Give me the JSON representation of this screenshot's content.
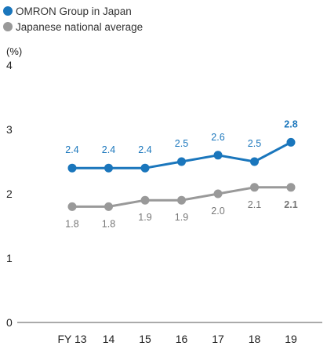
{
  "legend": [
    {
      "name": "OMRON Group in Japan",
      "color": "#1a76bc"
    },
    {
      "name": "Japanese national average",
      "color": "#999999"
    }
  ],
  "chart_data": {
    "type": "line",
    "title": "",
    "xlabel": "",
    "ylabel": "(%)",
    "categories": [
      "FY 13",
      "14",
      "15",
      "16",
      "17",
      "18",
      "19"
    ],
    "ylim": [
      0,
      4
    ],
    "yticks": [
      0,
      1,
      2,
      3,
      4
    ],
    "grid": false,
    "legend_position": "top-left",
    "series": [
      {
        "name": "OMRON Group in Japan",
        "color": "#1a76bc",
        "values": [
          2.4,
          2.4,
          2.4,
          2.5,
          2.6,
          2.5,
          2.8
        ],
        "labels": [
          "2.4",
          "2.4",
          "2.4",
          "2.5",
          "2.6",
          "2.5",
          "2.8"
        ],
        "label_position": "above",
        "last_label_bold": true
      },
      {
        "name": "Japanese national average",
        "color": "#999999",
        "values": [
          1.8,
          1.8,
          1.9,
          1.9,
          2.0,
          2.1,
          2.1
        ],
        "labels": [
          "1.8",
          "1.8",
          "1.9",
          "1.9",
          "2.0",
          "2.1",
          "2.1"
        ],
        "label_position": "below",
        "last_label_bold": true
      }
    ]
  }
}
